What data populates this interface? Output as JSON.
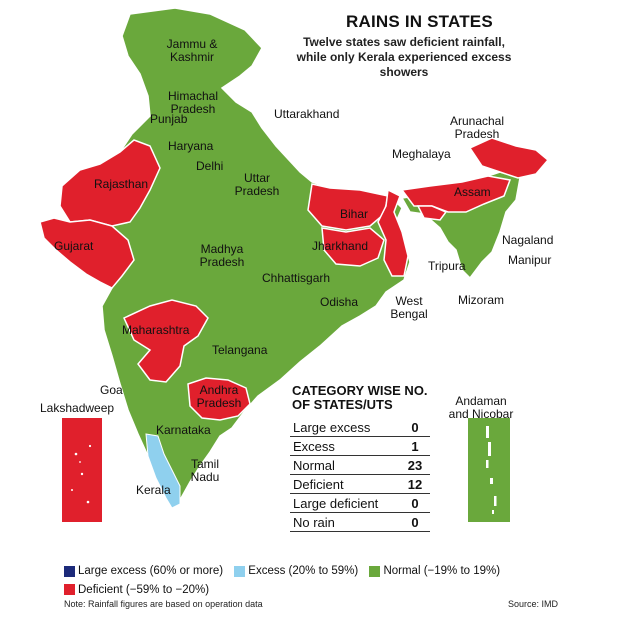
{
  "header": {
    "title": "RAINS IN STATES",
    "subtitle": "Twelve states saw deficient rainfall, while only Kerala experienced excess showers"
  },
  "colors": {
    "normal": "#6aa83c",
    "deficient": "#e0202c",
    "excess": "#8fd0ee",
    "large_excess": "#1c2a7a",
    "border": "#ffffff"
  },
  "map_labels": {
    "jk": "Jammu & Kashmir",
    "himachal": "Himachal Pradesh",
    "punjab": "Punjab",
    "uttarakhand": "Uttarakhand",
    "haryana": "Haryana",
    "delhi": "Delhi",
    "rajasthan": "Rajasthan",
    "up": "Uttar Pradesh",
    "bihar": "Bihar",
    "jharkhand": "Jharkhand",
    "wb": "West Bengal",
    "gujarat": "Gujarat",
    "mp": "Madhya Pradesh",
    "chhattisgarh": "Chhattisgarh",
    "odisha": "Odisha",
    "maharashtra": "Maharashtra",
    "telangana": "Telangana",
    "goa": "Goa",
    "ap": "Andhra Pradesh",
    "karnataka": "Karnataka",
    "tn": "Tamil Nadu",
    "kerala": "Kerala",
    "lakshadweep": "Lakshadweep",
    "andaman": "Andaman and Nicobar",
    "meghalaya": "Meghalaya",
    "arunachal": "Arunachal Pradesh",
    "assam": "Assam",
    "nagaland": "Nagaland",
    "manipur": "Manipur",
    "tripura": "Tripura",
    "mizoram": "Mizoram"
  },
  "table": {
    "title": "CATEGORY WISE NO. OF STATES/UTS",
    "rows": [
      {
        "label": "Large excess",
        "value": "0"
      },
      {
        "label": "Excess",
        "value": "1"
      },
      {
        "label": "Normal",
        "value": "23"
      },
      {
        "label": "Deficient",
        "value": "12"
      },
      {
        "label": "Large deficient",
        "value": "0"
      },
      {
        "label": "No rain",
        "value": "0"
      }
    ]
  },
  "legend": [
    {
      "label": "Large excess (60% or more)",
      "color": "#1c2a7a"
    },
    {
      "label": "Excess (20% to 59%)",
      "color": "#8fd0ee"
    },
    {
      "label": "Normal (−19% to 19%)",
      "color": "#6aa83c"
    },
    {
      "label": "Deficient (−59% to −20%)",
      "color": "#e0202c"
    }
  ],
  "footer": {
    "note": "Note: Rainfall figures are based on operation data",
    "source": "Source: IMD"
  }
}
